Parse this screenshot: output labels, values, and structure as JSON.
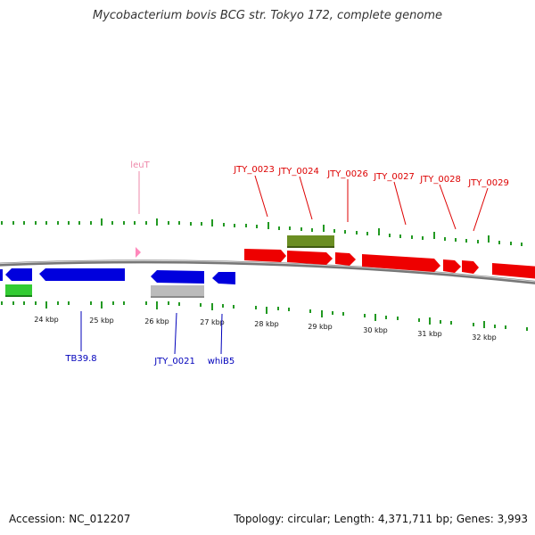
{
  "title": "Mycobacterium bovis BCG str. Tokyo 172, complete genome",
  "footer": {
    "accession": "Accession: NC_012207",
    "summary": "Topology: circular; Length: 4,371,711 bp; Genes: 3,993"
  },
  "colors": {
    "forward_cds": "#ee0000",
    "reverse_cds": "#0000dd",
    "rna_gene": "#33cc33",
    "pseudogene": "#bbbbbb",
    "misc_feature": "#6b8e23",
    "trna": "#ff88bb",
    "tick": "#229922",
    "backbone": "#777777",
    "forward_label": "#dd0000",
    "reverse_label": "#0000bb",
    "trna_label": "#ee88aa"
  },
  "scale": {
    "tick_labels": [
      "24 kbp",
      "25 kbp",
      "26 kbp",
      "27 kbp",
      "28 kbp",
      "29 kbp",
      "30 kbp",
      "31 kbp",
      "32 kbp"
    ]
  },
  "labels": {
    "forward": [
      "JTY_0023",
      "JTY_0024",
      "JTY_0026",
      "JTY_0027",
      "JTY_0028",
      "JTY_0029"
    ],
    "reverse": [
      "TB39.8",
      "JTY_0021",
      "whiB5"
    ],
    "trna": [
      "leuT"
    ]
  }
}
